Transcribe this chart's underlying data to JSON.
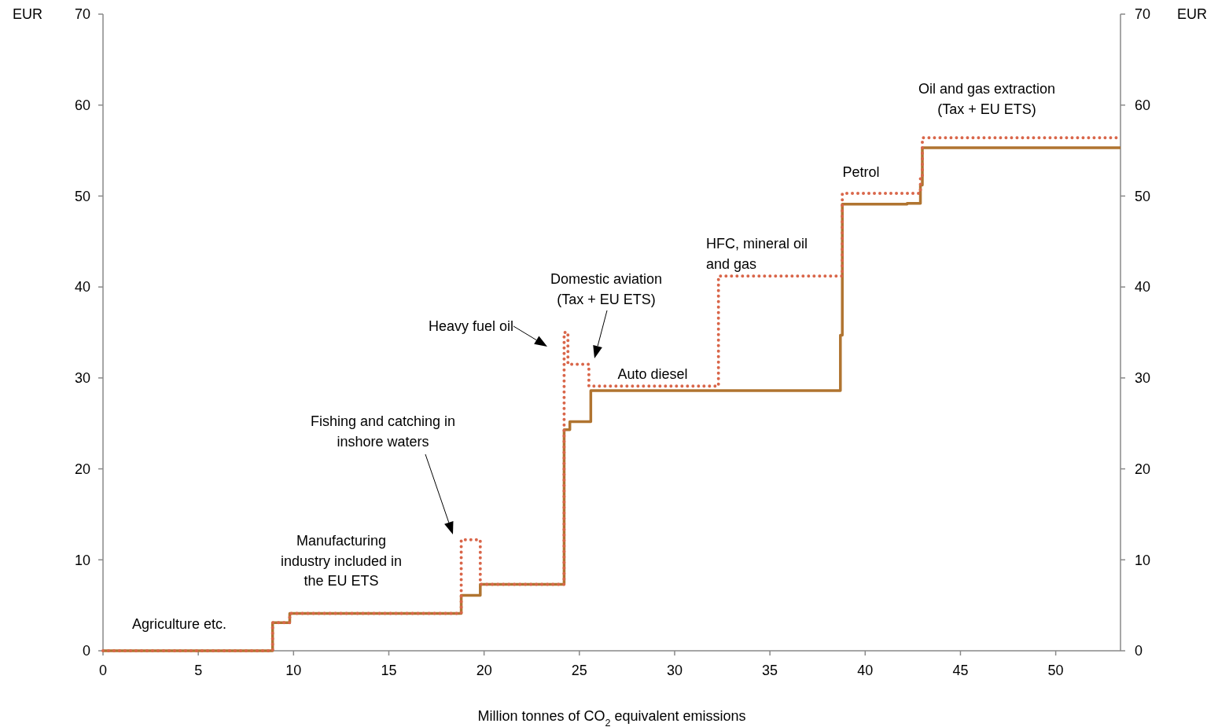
{
  "chart_data": {
    "type": "step",
    "xlabel": "Million tonnes of CO$_{2}$ equivalent emissions",
    "ylabel": "EUR",
    "y2label": "EUR",
    "xlim": [
      0,
      53.4
    ],
    "xticks": [
      0,
      5,
      10,
      15,
      20,
      25,
      30,
      35,
      40,
      45,
      50
    ],
    "ylim": [
      0,
      70
    ],
    "yticks": [
      0,
      10,
      20,
      30,
      40,
      50,
      60,
      70
    ],
    "y2lim": [
      0,
      70
    ],
    "y2ticks": [
      0,
      10,
      20,
      30,
      40,
      50,
      60,
      70
    ],
    "grid": false,
    "series": [
      {
        "color": "#b07430",
        "line_style": "solid",
        "x": [
          0,
          8.9,
          9.8,
          18.8,
          19.8,
          24.2,
          24.5,
          25.6,
          38.7,
          38.8,
          42.2,
          42.9,
          43.0,
          53.4
        ],
        "values": [
          0,
          3.1,
          4.1,
          6.1,
          7.3,
          24.3,
          25.2,
          28.6,
          34.7,
          49.1,
          49.2,
          51.2,
          55.3,
          55.3
        ]
      },
      {
        "color": "#d9664a",
        "line_style": "dotted",
        "x": [
          0,
          8.9,
          9.8,
          18.8,
          19.8,
          24.2,
          24.4,
          25.5,
          32.3,
          38.8,
          42.9,
          43.0,
          53.4
        ],
        "values": [
          0,
          3.1,
          4.1,
          12.2,
          7.3,
          35.0,
          31.5,
          29.1,
          41.2,
          50.3,
          51.9,
          56.4,
          56.4
        ]
      }
    ],
    "annotations": [
      "Agriculture etc.",
      "Manufacturing\nindustry included in\nthe EU ETS",
      "Fishing and catching in\ninshore waters",
      "Heavy fuel oil",
      "Domestic aviation\n(Tax + EU ETS)",
      "Auto diesel",
      "HFC, mineral oil\nand gas",
      "Petrol",
      "Oil and gas extraction\n(Tax + EU ETS)"
    ]
  }
}
